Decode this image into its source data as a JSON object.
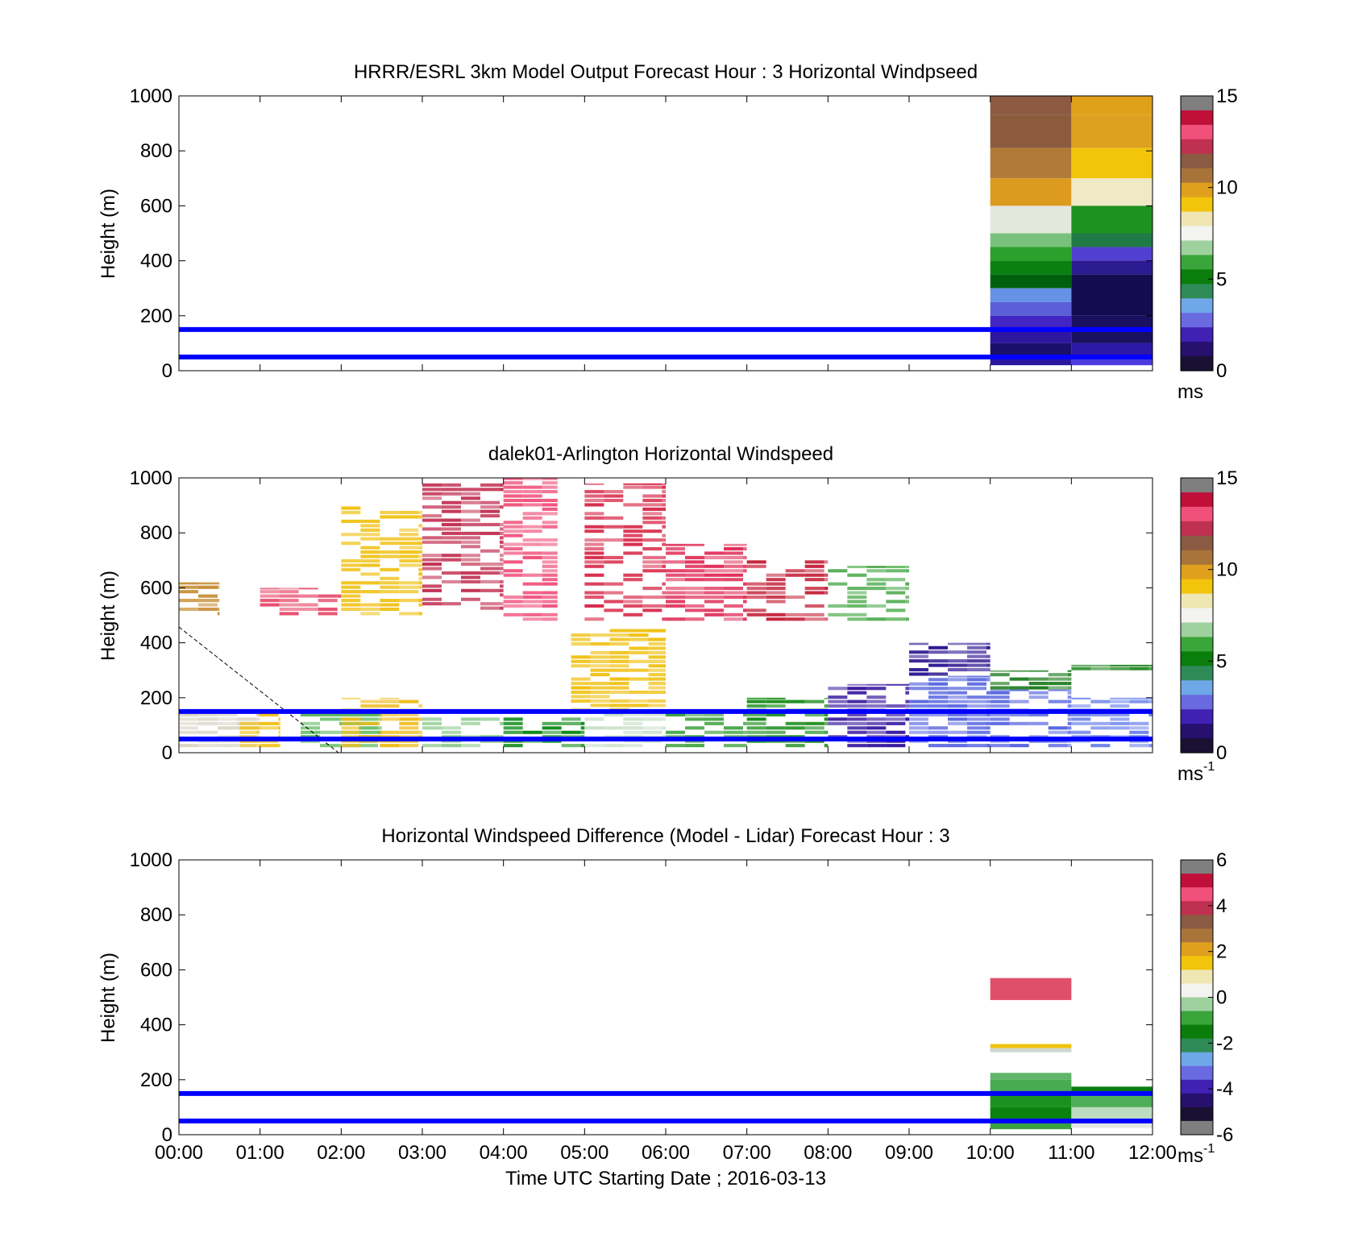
{
  "figure": {
    "xlabel": "Time UTC  Starting Date ; 2016-03-13",
    "x_ticks": [
      "00:00",
      "01:00",
      "02:00",
      "03:00",
      "04:00",
      "05:00",
      "06:00",
      "07:00",
      "08:00",
      "09:00",
      "10:00",
      "11:00",
      "12:00"
    ]
  },
  "chart_data": [
    {
      "type": "heatmap",
      "title": "HRRR/ESRL 3km Model Output   Forecast Hour : 3 Horizontal Windpseed",
      "xlabel": "",
      "ylabel": "Height (m)",
      "xlim": [
        "00:00",
        "12:00"
      ],
      "ylim": [
        0,
        1000
      ],
      "y_ticks": [
        0,
        200,
        400,
        600,
        800,
        1000
      ],
      "colorbar": {
        "ticks": [
          0,
          5,
          10,
          15
        ],
        "label": "ms",
        "label_sup": "",
        "range": [
          0,
          15
        ]
      },
      "grid": false,
      "hlines_m": [
        50,
        150
      ],
      "hline_color": "#0000ff",
      "cells": [
        {
          "t0": "10:00",
          "t1": "11:00",
          "h0": 930,
          "h1": 1000,
          "color": "#8b5a40"
        },
        {
          "t0": "10:00",
          "t1": "11:00",
          "h0": 810,
          "h1": 930,
          "color": "#8c5b3e"
        },
        {
          "t0": "10:00",
          "t1": "11:00",
          "h0": 700,
          "h1": 810,
          "color": "#b17b37"
        },
        {
          "t0": "10:00",
          "t1": "11:00",
          "h0": 600,
          "h1": 700,
          "color": "#dc9a1e"
        },
        {
          "t0": "10:00",
          "t1": "11:00",
          "h0": 500,
          "h1": 600,
          "color": "#e3e8dc"
        },
        {
          "t0": "10:00",
          "t1": "11:00",
          "h0": 450,
          "h1": 500,
          "color": "#78c27d"
        },
        {
          "t0": "10:00",
          "t1": "11:00",
          "h0": 400,
          "h1": 450,
          "color": "#2c9f2c"
        },
        {
          "t0": "10:00",
          "t1": "11:00",
          "h0": 350,
          "h1": 400,
          "color": "#0a8010"
        },
        {
          "t0": "10:00",
          "t1": "11:00",
          "h0": 300,
          "h1": 350,
          "color": "#005f0d"
        },
        {
          "t0": "10:00",
          "t1": "11:00",
          "h0": 250,
          "h1": 300,
          "color": "#6692e6"
        },
        {
          "t0": "10:00",
          "t1": "11:00",
          "h0": 200,
          "h1": 250,
          "color": "#5a5fd8"
        },
        {
          "t0": "10:00",
          "t1": "11:00",
          "h0": 150,
          "h1": 200,
          "color": "#4325c4"
        },
        {
          "t0": "10:00",
          "t1": "11:00",
          "h0": 100,
          "h1": 150,
          "color": "#2f16a0"
        },
        {
          "t0": "10:00",
          "t1": "11:00",
          "h0": 50,
          "h1": 100,
          "color": "#1a0f6a"
        },
        {
          "t0": "10:00",
          "t1": "11:00",
          "h0": 20,
          "h1": 50,
          "color": "#2a17a0"
        },
        {
          "t0": "11:00",
          "t1": "12:00",
          "h0": 930,
          "h1": 1000,
          "color": "#e0a11a"
        },
        {
          "t0": "11:00",
          "t1": "12:00",
          "h0": 810,
          "h1": 930,
          "color": "#dda020"
        },
        {
          "t0": "11:00",
          "t1": "12:00",
          "h0": 700,
          "h1": 810,
          "color": "#f2c40a"
        },
        {
          "t0": "11:00",
          "t1": "12:00",
          "h0": 600,
          "h1": 700,
          "color": "#efe9c5"
        },
        {
          "t0": "11:00",
          "t1": "12:00",
          "h0": 500,
          "h1": 600,
          "color": "#1f9120"
        },
        {
          "t0": "11:00",
          "t1": "12:00",
          "h0": 450,
          "h1": 500,
          "color": "#1f7a45"
        },
        {
          "t0": "11:00",
          "t1": "12:00",
          "h0": 400,
          "h1": 450,
          "color": "#5140d0"
        },
        {
          "t0": "11:00",
          "t1": "12:00",
          "h0": 350,
          "h1": 400,
          "color": "#2c1b90"
        },
        {
          "t0": "11:00",
          "t1": "12:00",
          "h0": 200,
          "h1": 350,
          "color": "#130c50"
        },
        {
          "t0": "11:00",
          "t1": "12:00",
          "h0": 100,
          "h1": 200,
          "color": "#1a1060"
        },
        {
          "t0": "11:00",
          "t1": "12:00",
          "h0": 50,
          "h1": 100,
          "color": "#2d18a8"
        },
        {
          "t0": "11:00",
          "t1": "12:00",
          "h0": 20,
          "h1": 50,
          "color": "#4b3ae0"
        }
      ]
    },
    {
      "type": "heatmap",
      "title": "dalek01-Arlington  Horizontal Windspeed",
      "xlabel": "",
      "ylabel": "Height (m)",
      "xlim": [
        "00:00",
        "12:00"
      ],
      "ylim": [
        0,
        1000
      ],
      "y_ticks": [
        0,
        200,
        400,
        600,
        800,
        1000
      ],
      "colorbar": {
        "ticks": [
          0,
          5,
          10,
          15
        ],
        "label": "ms",
        "label_sup": "-1",
        "range": [
          0,
          15
        ]
      },
      "grid": false,
      "hlines_m": [
        50,
        150
      ],
      "hline_color": "#0000ff",
      "regions": [
        {
          "t0": "00:00",
          "t1": "00:30",
          "h0": 500,
          "h1": 620,
          "band": "mid",
          "color": "#c58a2e"
        },
        {
          "t0": "00:00",
          "t1": "01:00",
          "h0": 20,
          "h1": 150,
          "band": "low",
          "color": "#d9d5c5"
        },
        {
          "t0": "00:45",
          "t1": "01:15",
          "h0": 20,
          "h1": 150,
          "band": "low",
          "color": "#f0c010"
        },
        {
          "t0": "01:00",
          "t1": "02:00",
          "h0": 500,
          "h1": 600,
          "band": "mid",
          "color": "#e85070"
        },
        {
          "t0": "01:30",
          "t1": "02:30",
          "h0": 20,
          "h1": 150,
          "band": "low",
          "color": "#5cb85c"
        },
        {
          "t0": "02:00",
          "t1": "03:00",
          "h0": 20,
          "h1": 200,
          "band": "low",
          "color": "#efbb1a"
        },
        {
          "t0": "02:00",
          "t1": "03:00",
          "h0": 500,
          "h1": 900,
          "band": "mid",
          "color": "#f0c010"
        },
        {
          "t0": "03:00",
          "t1": "04:00",
          "h0": 20,
          "h1": 130,
          "band": "low",
          "color": "#8cc98c"
        },
        {
          "t0": "03:00",
          "t1": "04:00",
          "h0": 520,
          "h1": 980,
          "band": "high",
          "color": "#c23355"
        },
        {
          "t0": "04:00",
          "t1": "05:00",
          "h0": 20,
          "h1": 130,
          "band": "low",
          "color": "#0d8a14"
        },
        {
          "t0": "04:00",
          "t1": "04:40",
          "h0": 480,
          "h1": 1000,
          "band": "high",
          "color": "#f0507a"
        },
        {
          "t0": "04:50",
          "t1": "06:00",
          "h0": 150,
          "h1": 450,
          "band": "mid",
          "color": "#f0c010"
        },
        {
          "t0": "05:00",
          "t1": "06:00",
          "h0": 20,
          "h1": 150,
          "band": "low",
          "color": "#c8e0c8"
        },
        {
          "t0": "05:00",
          "t1": "06:00",
          "h0": 480,
          "h1": 980,
          "band": "high",
          "color": "#d82c4c"
        },
        {
          "t0": "06:00",
          "t1": "07:00",
          "h0": 480,
          "h1": 760,
          "band": "high",
          "color": "#e0305a"
        },
        {
          "t0": "06:00",
          "t1": "07:00",
          "h0": 20,
          "h1": 150,
          "band": "low",
          "color": "#3aa03a"
        },
        {
          "t0": "07:00",
          "t1": "08:00",
          "h0": 20,
          "h1": 200,
          "band": "low",
          "color": "#1a8c1a"
        },
        {
          "t0": "07:00",
          "t1": "08:00",
          "h0": 480,
          "h1": 700,
          "band": "high",
          "color": "#c5243c"
        },
        {
          "t0": "08:00",
          "t1": "09:00",
          "h0": 20,
          "h1": 250,
          "band": "low",
          "color": "#3a1aa0"
        },
        {
          "t0": "08:00",
          "t1": "09:00",
          "h0": 480,
          "h1": 680,
          "band": "mid",
          "color": "#49a949"
        },
        {
          "t0": "09:00",
          "t1": "10:00",
          "h0": 20,
          "h1": 280,
          "band": "low",
          "color": "#5b69e0"
        },
        {
          "t0": "09:00",
          "t1": "10:00",
          "h0": 280,
          "h1": 400,
          "band": "low",
          "color": "#2a1290"
        },
        {
          "t0": "10:00",
          "t1": "11:00",
          "h0": 20,
          "h1": 230,
          "band": "low",
          "color": "#5b69e0"
        },
        {
          "t0": "10:00",
          "t1": "11:00",
          "h0": 230,
          "h1": 300,
          "band": "low",
          "color": "#1a7a1a"
        },
        {
          "t0": "11:00",
          "t1": "12:00",
          "h0": 20,
          "h1": 200,
          "band": "low",
          "color": "#6e86ea"
        },
        {
          "t0": "11:00",
          "t1": "12:00",
          "h0": 300,
          "h1": 320,
          "band": "low",
          "color": "#0c7a0c"
        }
      ]
    },
    {
      "type": "heatmap",
      "title": "Horizontal Windspeed Difference (Model - Lidar) Forecast Hour : 3",
      "xlabel": "Time UTC  Starting Date ; 2016-03-13",
      "ylabel": "Height (m)",
      "xlim": [
        "00:00",
        "12:00"
      ],
      "ylim": [
        0,
        1000
      ],
      "y_ticks": [
        0,
        200,
        400,
        600,
        800,
        1000
      ],
      "colorbar": {
        "ticks": [
          -6,
          -4,
          -2,
          0,
          2,
          4,
          6
        ],
        "label": "ms",
        "label_sup": "-1",
        "range": [
          -6,
          6
        ]
      },
      "grid": false,
      "hlines_m": [
        50,
        150
      ],
      "hline_color": "#0000ff",
      "cells": [
        {
          "t0": "10:00",
          "t1": "11:00",
          "h0": 490,
          "h1": 570,
          "color": "#e04f6a"
        },
        {
          "t0": "10:00",
          "t1": "11:00",
          "h0": 315,
          "h1": 330,
          "color": "#f1c40f"
        },
        {
          "t0": "10:00",
          "t1": "11:00",
          "h0": 300,
          "h1": 315,
          "color": "#cfd8d0"
        },
        {
          "t0": "10:00",
          "t1": "11:00",
          "h0": 200,
          "h1": 225,
          "color": "#5fb56a"
        },
        {
          "t0": "10:00",
          "t1": "11:00",
          "h0": 150,
          "h1": 200,
          "color": "#48aa52"
        },
        {
          "t0": "10:00",
          "t1": "11:00",
          "h0": 100,
          "h1": 150,
          "color": "#1b921f"
        },
        {
          "t0": "10:00",
          "t1": "11:00",
          "h0": 50,
          "h1": 100,
          "color": "#0a8210"
        },
        {
          "t0": "10:00",
          "t1": "11:00",
          "h0": 20,
          "h1": 50,
          "color": "#3aa043"
        },
        {
          "t0": "11:00",
          "t1": "12:00",
          "h0": 150,
          "h1": 175,
          "color": "#0a7d10"
        },
        {
          "t0": "11:00",
          "t1": "12:00",
          "h0": 100,
          "h1": 150,
          "color": "#4fad57"
        },
        {
          "t0": "11:00",
          "t1": "12:00",
          "h0": 50,
          "h1": 100,
          "color": "#bcdcbf"
        },
        {
          "t0": "11:00",
          "t1": "12:00",
          "h0": 25,
          "h1": 50,
          "color": "#e2e8e2"
        }
      ]
    }
  ],
  "colormaps": {
    "speed": [
      "#1a1033",
      "#27106e",
      "#4120b4",
      "#6a6ae0",
      "#6fa8e8",
      "#2e8b57",
      "#0a7d0a",
      "#3aa53a",
      "#9fd19f",
      "#f3f3f0",
      "#efe6b2",
      "#f2c40c",
      "#e0a01e",
      "#a8743a",
      "#8b5a42",
      "#c03050",
      "#f0507a",
      "#c0103a",
      "#7f7f7f"
    ],
    "diff": [
      "#7f7f7f",
      "#1a1033",
      "#27106e",
      "#4120b4",
      "#6a6ae0",
      "#6fa8e8",
      "#2e8b57",
      "#0a7d0a",
      "#3aa53a",
      "#9fd19f",
      "#f3f3f0",
      "#efe6b2",
      "#f2c40c",
      "#e0a01e",
      "#a8743a",
      "#8b5a42",
      "#c03050",
      "#f0507a",
      "#c0103a",
      "#7f7f7f"
    ]
  }
}
